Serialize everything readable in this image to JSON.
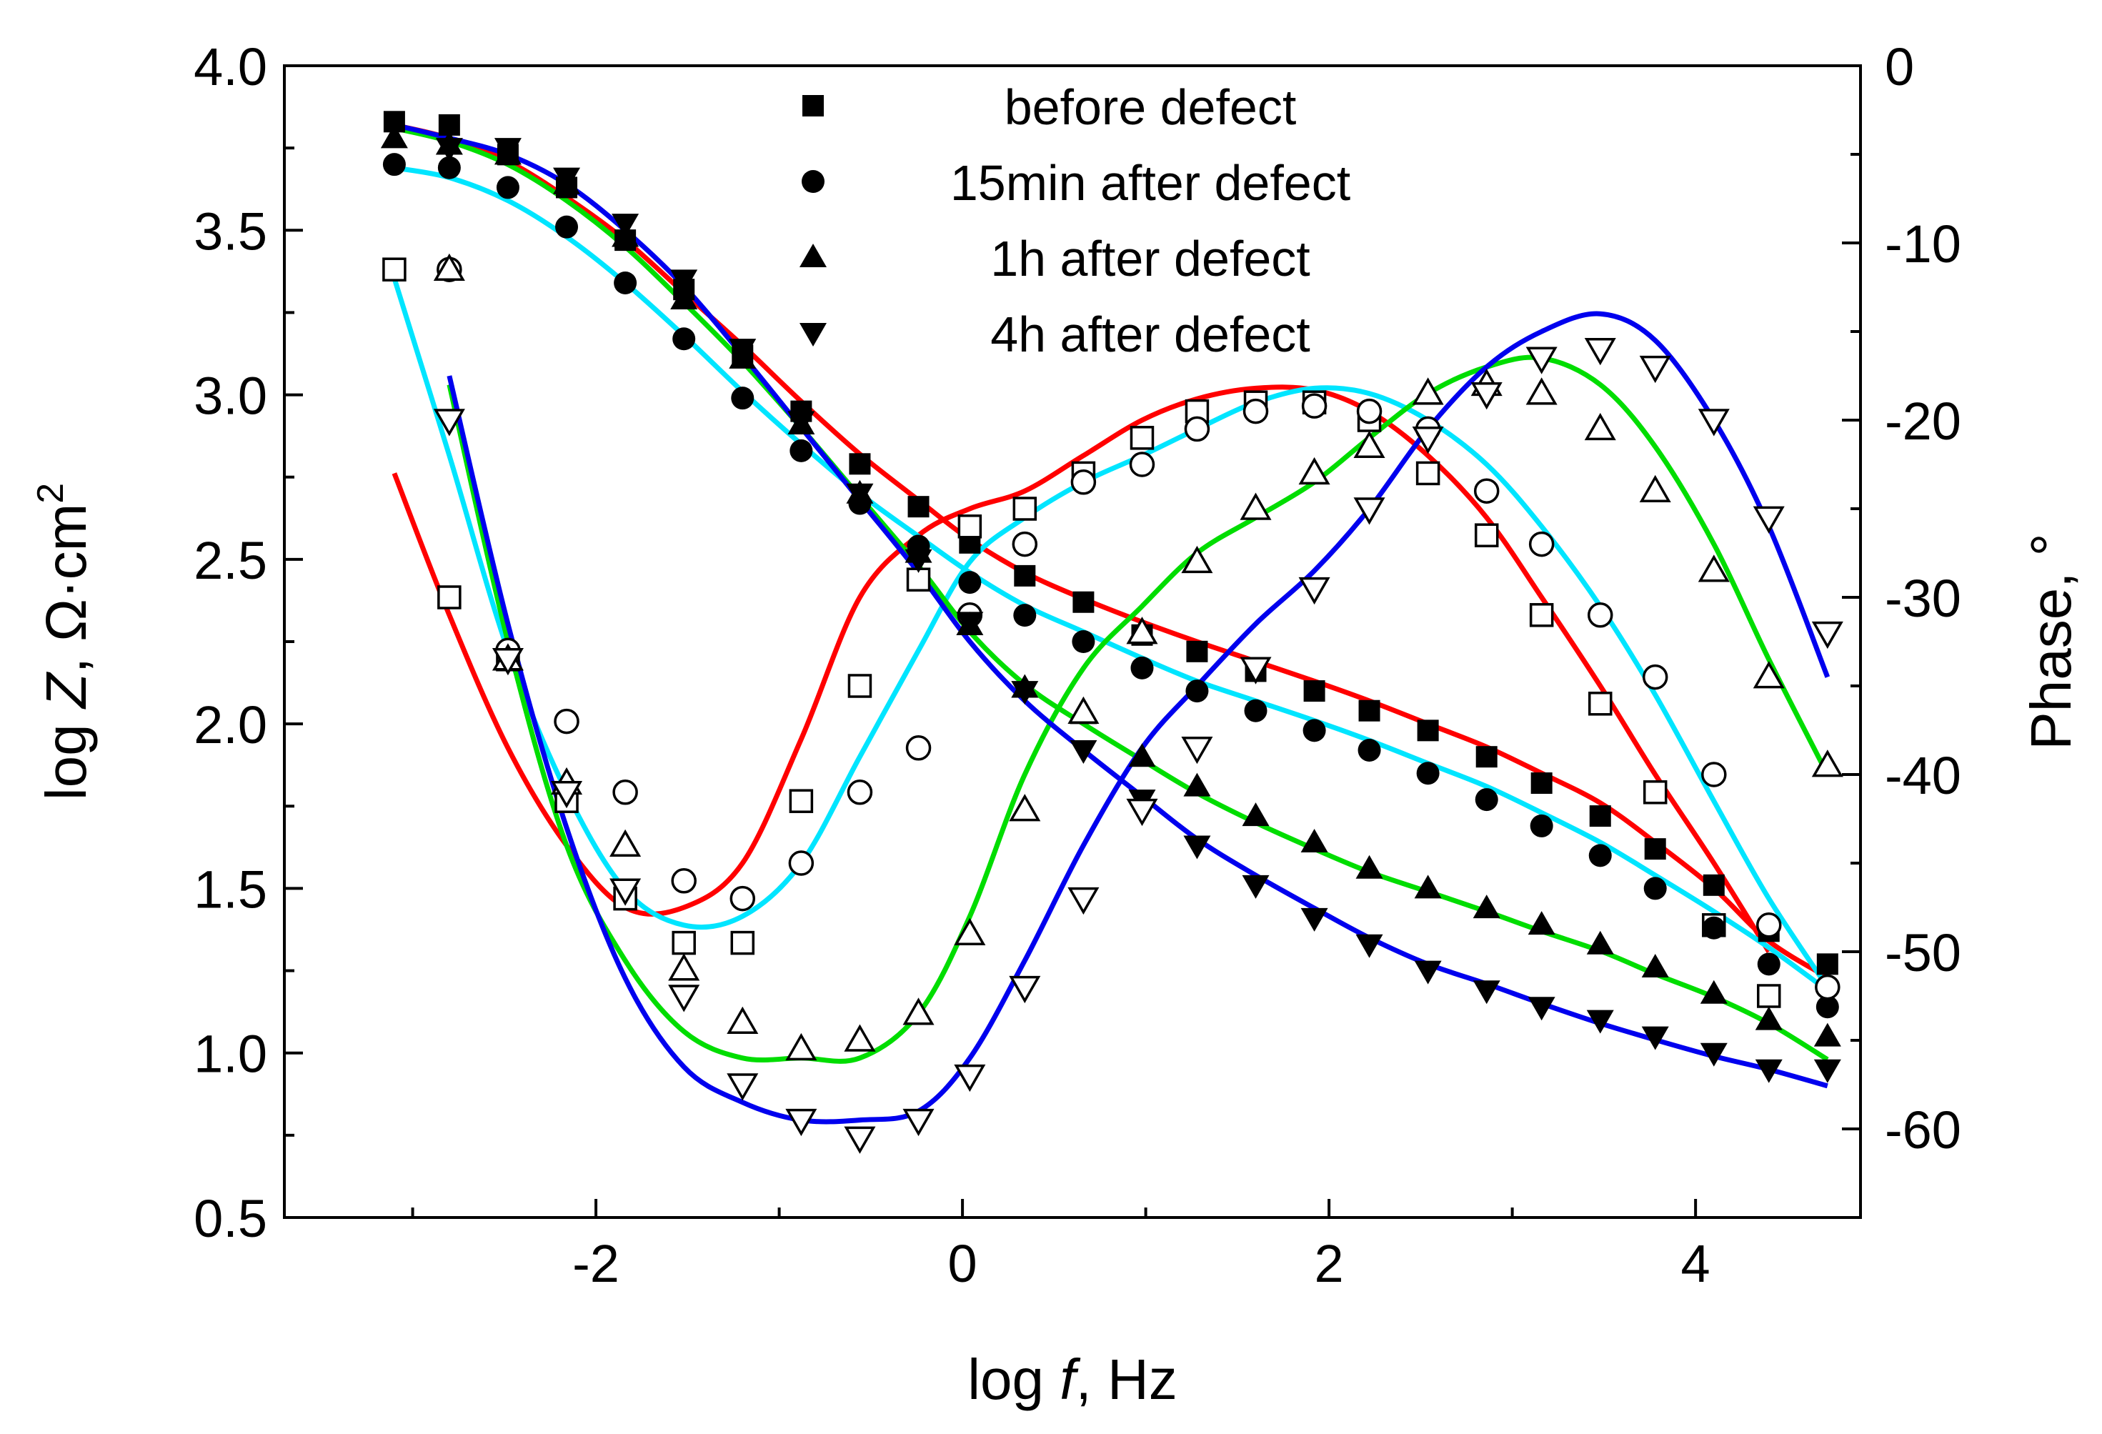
{
  "chart_data": {
    "type": "line",
    "title": "",
    "xlabel": {
      "pre": "log ",
      "italic": "f",
      "post": ", Hz"
    },
    "ylabel_left": {
      "pre": "log ",
      "italic": "Z",
      "post": ",  Ω·cm",
      "sup": "2"
    },
    "ylabel_right": "Phase, °",
    "xlim": [
      -3.7,
      4.9
    ],
    "ylim_left": [
      0.5,
      4.0
    ],
    "ylim_right": [
      -65,
      0
    ],
    "x_ticks": [
      "-2",
      "0",
      "2",
      "4"
    ],
    "x_tick_values": [
      -2,
      0,
      2,
      4
    ],
    "y_ticks_left": [
      "0.5",
      "1.0",
      "1.5",
      "2.0",
      "2.5",
      "3.0",
      "3.5",
      "4.0"
    ],
    "y_tick_values_left": [
      0.5,
      1.0,
      1.5,
      2.0,
      2.5,
      3.0,
      3.5,
      4.0
    ],
    "y_ticks_right": [
      "-60",
      "-50",
      "-40",
      "-30",
      "-20",
      "-10",
      "0"
    ],
    "y_tick_values_right": [
      -60,
      -50,
      -40,
      -30,
      -20,
      -10,
      0
    ],
    "legend": {
      "placement": "top-center",
      "entries": [
        "before defect",
        "15min after defect",
        "1h after defect",
        "4h after defect"
      ]
    },
    "x_points": [
      -3.1,
      -2.8,
      -2.48,
      -2.16,
      -1.84,
      -1.52,
      -1.2,
      -0.88,
      -0.56,
      -0.24,
      0.04,
      0.34,
      0.66,
      0.98,
      1.28,
      1.6,
      1.92,
      2.22,
      2.54,
      2.86,
      3.16,
      3.48,
      3.78,
      4.1,
      4.4,
      4.72
    ],
    "series": [
      {
        "name": "before defect",
        "marker": "square",
        "fit_color": "#ff0000",
        "modulus": [
          3.83,
          3.82,
          3.73,
          3.63,
          3.47,
          3.32,
          3.12,
          2.95,
          2.79,
          2.66,
          2.55,
          2.45,
          2.37,
          2.27,
          2.22,
          2.16,
          2.1,
          2.04,
          1.98,
          1.9,
          1.82,
          1.72,
          1.62,
          1.51,
          1.37,
          1.27
        ],
        "phase": [
          -11.5,
          -30,
          -33.5,
          -41.5,
          -47,
          -49.5,
          -49.5,
          -41.5,
          -35,
          -29,
          -26,
          -25,
          -23,
          -21,
          -19.5,
          -19,
          -19,
          -20,
          -23,
          -26.5,
          -31,
          -36,
          -41,
          -48.5,
          -52.5,
          null
        ],
        "fit_modulus": [
          3.82,
          3.78,
          3.71,
          3.6,
          3.47,
          3.31,
          3.15,
          2.98,
          2.82,
          2.68,
          2.56,
          2.46,
          2.38,
          2.31,
          2.25,
          2.19,
          2.13,
          2.07,
          2.0,
          1.93,
          1.85,
          1.76,
          1.64,
          1.5,
          1.34,
          1.23
        ],
        "fit_phase": [
          -23,
          -31,
          -38.5,
          -44,
          -47.5,
          -47.5,
          -45,
          -38,
          -30,
          -26.5,
          -25,
          -24,
          -22,
          -20,
          -18.8,
          -18.2,
          -18.3,
          -19.5,
          -22,
          -25.5,
          -30,
          -35,
          -40,
          -45,
          -50,
          null
        ]
      },
      {
        "name": "15min after defect",
        "marker": "circle",
        "fit_color": "#00e5ff",
        "modulus": [
          3.7,
          3.69,
          3.63,
          3.51,
          3.34,
          3.17,
          2.99,
          2.83,
          2.67,
          2.54,
          2.43,
          2.33,
          2.25,
          2.17,
          2.1,
          2.04,
          1.98,
          1.92,
          1.85,
          1.77,
          1.69,
          1.6,
          1.5,
          1.38,
          1.27,
          1.14
        ],
        "phase": [
          null,
          -11.5,
          -33,
          -37,
          -41,
          -46,
          -47,
          -45,
          -41,
          -38.5,
          -31,
          -27,
          -23.5,
          -22.5,
          -20.5,
          -19.5,
          -19.2,
          -19.5,
          -20.5,
          -24,
          -27,
          -31,
          -34.5,
          -40,
          -48.5,
          -52
        ],
        "fit_modulus": [
          3.69,
          3.66,
          3.59,
          3.48,
          3.34,
          3.18,
          3.01,
          2.85,
          2.7,
          2.57,
          2.46,
          2.36,
          2.28,
          2.2,
          2.13,
          2.07,
          2.01,
          1.95,
          1.88,
          1.81,
          1.73,
          1.64,
          1.54,
          1.43,
          1.32,
          1.19
        ],
        "fit_phase": [
          -12,
          -22,
          -33,
          -41,
          -46.5,
          -48.5,
          -48,
          -45,
          -39,
          -33,
          -28,
          -25.5,
          -23.5,
          -22,
          -20.5,
          -19,
          -18.2,
          -18.5,
          -20,
          -22.5,
          -26,
          -30.5,
          -35.5,
          -41.5,
          -47,
          -52
        ]
      },
      {
        "name": "1h after defect",
        "marker": "triangle-up",
        "fit_color": "#00dd00",
        "modulus": [
          3.78,
          3.76,
          3.73,
          3.64,
          3.48,
          3.29,
          3.11,
          2.91,
          2.7,
          2.52,
          2.3,
          2.11,
          2.03,
          1.9,
          1.81,
          1.72,
          1.64,
          1.56,
          1.5,
          1.44,
          1.39,
          1.33,
          1.26,
          1.18,
          1.1,
          1.05
        ],
        "phase": [
          null,
          -11.5,
          -33.5,
          -40.5,
          -44,
          -51,
          -54,
          -55.5,
          -55,
          -53.5,
          -49,
          -42,
          -36.5,
          -32,
          -28,
          -25,
          -23,
          -21.5,
          -18.5,
          -18,
          -18.5,
          -20.5,
          -24,
          -28.5,
          -34.5,
          -39.5
        ],
        "fit_modulus": [
          3.81,
          3.77,
          3.7,
          3.59,
          3.45,
          3.28,
          3.1,
          2.9,
          2.69,
          2.48,
          2.28,
          2.12,
          2.0,
          1.89,
          1.79,
          1.7,
          1.62,
          1.55,
          1.49,
          1.43,
          1.37,
          1.31,
          1.24,
          1.17,
          1.09,
          0.98
        ],
        "fit_phase": [
          null,
          -18,
          -32.5,
          -44,
          -50.5,
          -54.5,
          -56,
          -56,
          -56,
          -53.5,
          -48,
          -40,
          -34,
          -30.5,
          -27.5,
          -25.5,
          -23.5,
          -21,
          -18.5,
          -17,
          -16.5,
          -18,
          -21.5,
          -27,
          -33.5,
          -40
        ]
      },
      {
        "name": "4h after defect",
        "marker": "triangle-down",
        "fit_color": "#0000ee",
        "modulus": [
          null,
          3.75,
          3.75,
          3.66,
          3.52,
          3.35,
          3.14,
          2.92,
          2.7,
          2.5,
          2.31,
          2.1,
          1.92,
          1.77,
          1.63,
          1.51,
          1.41,
          1.33,
          1.25,
          1.19,
          1.14,
          1.1,
          1.05,
          1.0,
          0.95,
          0.95
        ],
        "phase": [
          null,
          -20,
          -33.5,
          -41,
          -46.5,
          -52.5,
          -57.5,
          -59.5,
          -60.5,
          -59.5,
          -57,
          -52,
          -47,
          -42,
          -38.5,
          -34,
          -29.5,
          -25,
          -21,
          -18.5,
          -16.5,
          -16,
          -17,
          -20,
          -25.5,
          -32
        ],
        "fit_modulus": [
          3.82,
          3.78,
          3.73,
          3.64,
          3.5,
          3.33,
          3.12,
          2.9,
          2.68,
          2.46,
          2.25,
          2.07,
          1.92,
          1.78,
          1.65,
          1.54,
          1.44,
          1.35,
          1.27,
          1.21,
          1.15,
          1.09,
          1.04,
          0.99,
          0.95,
          0.9
        ],
        "fit_phase": [
          null,
          -17.5,
          -31.5,
          -43,
          -51.5,
          -56.5,
          -58.5,
          -59.5,
          -59.5,
          -59,
          -56,
          -50.5,
          -44,
          -38.5,
          -35,
          -31.5,
          -28.5,
          -25,
          -20.5,
          -17,
          -15,
          -14,
          -15.5,
          -20,
          -26,
          -34.5
        ]
      }
    ]
  }
}
